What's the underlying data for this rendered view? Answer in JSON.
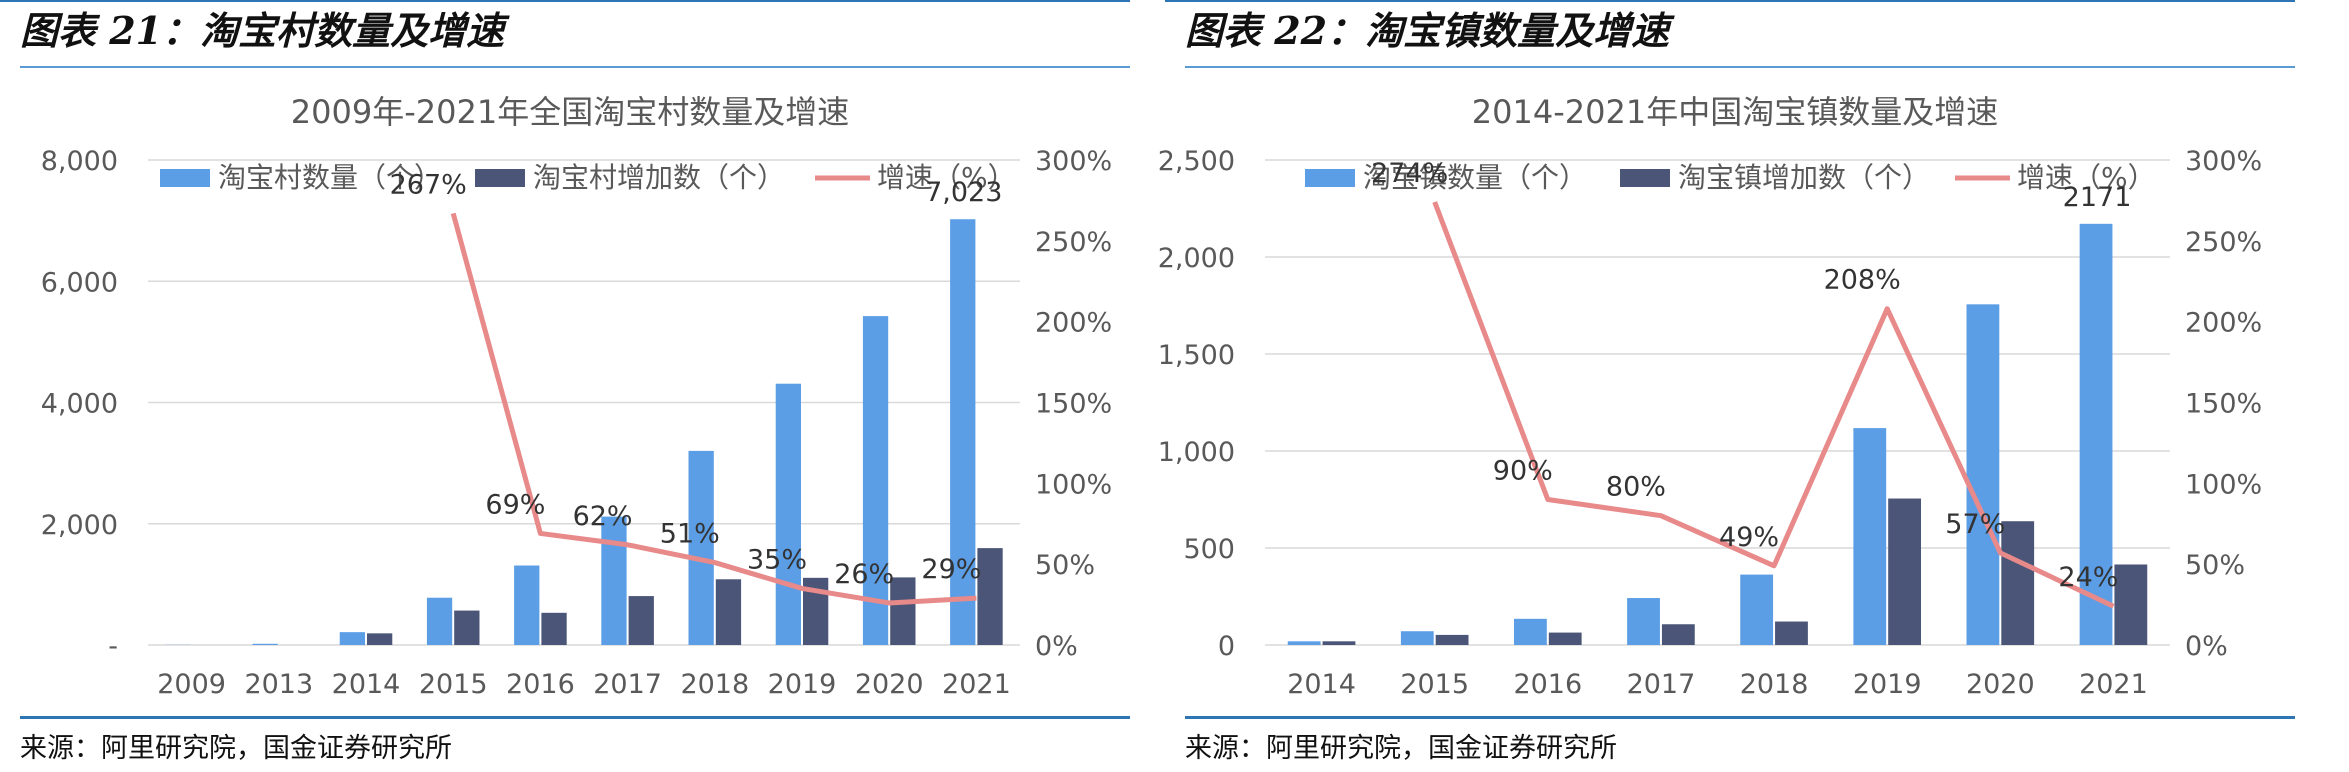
{
  "panels": [
    {
      "figure_title": "图表 21：淘宝村数量及增速",
      "source": "来源：阿里研究院，国金证券研究所"
    },
    {
      "figure_title": "图表 22：淘宝镇数量及增速",
      "source": "来源：阿里研究院，国金证券研究所"
    }
  ],
  "colors": {
    "count_bar": "#5b9ee6",
    "increase_bar": "#4a5577",
    "growth_line": "#e8898a",
    "grid": "#d9d9d9",
    "text": "#595959",
    "rule": "#2e75b6"
  },
  "chart_data": [
    {
      "type": "bar",
      "title": "2009年-2021年全国淘宝村数量及增速",
      "categories": [
        "2009",
        "2013",
        "2014",
        "2015",
        "2016",
        "2017",
        "2018",
        "2019",
        "2020",
        "2021"
      ],
      "series": [
        {
          "name": "淘宝村数量（个）",
          "type": "bar",
          "axis": "left",
          "values": [
            3,
            20,
            212,
            780,
            1311,
            2118,
            3202,
            4310,
            5425,
            7023
          ]
        },
        {
          "name": "淘宝村增加数（个）",
          "type": "bar",
          "axis": "left",
          "values": [
            0,
            0,
            192,
            568,
            531,
            807,
            1084,
            1108,
            1115,
            1598
          ]
        },
        {
          "name": "增速（%）",
          "type": "line",
          "axis": "right",
          "values": [
            null,
            null,
            null,
            267,
            69,
            62,
            51,
            35,
            26,
            29
          ]
        }
      ],
      "annotations": [
        {
          "category": "2015",
          "text": "267%"
        },
        {
          "category": "2016",
          "text": "69%"
        },
        {
          "category": "2017",
          "text": "62%"
        },
        {
          "category": "2018",
          "text": "51%"
        },
        {
          "category": "2019",
          "text": "35%"
        },
        {
          "category": "2020",
          "text": "26%"
        },
        {
          "category": "2021",
          "text": "29%"
        },
        {
          "category": "2021",
          "text": "7,023",
          "series": "count"
        }
      ],
      "ylim": [
        0,
        8000
      ],
      "yticks": [
        0,
        2000,
        4000,
        6000,
        8000
      ],
      "ytick_labels": [
        "-",
        "2,000",
        "4,000",
        "6,000",
        "8,000"
      ],
      "y2lim": [
        0,
        300
      ],
      "y2ticks": [
        0,
        50,
        100,
        150,
        200,
        250,
        300
      ],
      "y2tick_labels": [
        "0%",
        "50%",
        "100%",
        "150%",
        "200%",
        "250%",
        "300%"
      ],
      "grid": true,
      "legend": "top"
    },
    {
      "type": "bar",
      "title": "2014-2021年中国淘宝镇数量及增速",
      "categories": [
        "2014",
        "2015",
        "2016",
        "2017",
        "2018",
        "2019",
        "2020",
        "2021"
      ],
      "series": [
        {
          "name": "淘宝镇数量（个）",
          "type": "bar",
          "axis": "left",
          "values": [
            19,
            71,
            135,
            242,
            363,
            1118,
            1756,
            2171
          ]
        },
        {
          "name": "淘宝镇增加数（个）",
          "type": "bar",
          "axis": "left",
          "values": [
            19,
            52,
            64,
            107,
            121,
            755,
            638,
            415
          ]
        },
        {
          "name": "增速（%）",
          "type": "line",
          "axis": "right",
          "values": [
            null,
            274,
            90,
            80,
            49,
            208,
            57,
            24
          ]
        }
      ],
      "annotations": [
        {
          "category": "2015",
          "text": "274%"
        },
        {
          "category": "2016",
          "text": "90%"
        },
        {
          "category": "2017",
          "text": "80%"
        },
        {
          "category": "2018",
          "text": "49%"
        },
        {
          "category": "2019",
          "text": "208%"
        },
        {
          "category": "2020",
          "text": "57%"
        },
        {
          "category": "2021",
          "text": "24%"
        },
        {
          "category": "2021",
          "text": "2171",
          "series": "count"
        }
      ],
      "ylim": [
        0,
        2500
      ],
      "yticks": [
        0,
        500,
        1000,
        1500,
        2000,
        2500
      ],
      "ytick_labels": [
        "0",
        "500",
        "1,000",
        "1,500",
        "2,000",
        "2,500"
      ],
      "y2lim": [
        0,
        300
      ],
      "y2ticks": [
        0,
        50,
        100,
        150,
        200,
        250,
        300
      ],
      "y2tick_labels": [
        "0%",
        "50%",
        "100%",
        "150%",
        "200%",
        "250%",
        "300%"
      ],
      "grid": true,
      "legend": "top"
    }
  ]
}
